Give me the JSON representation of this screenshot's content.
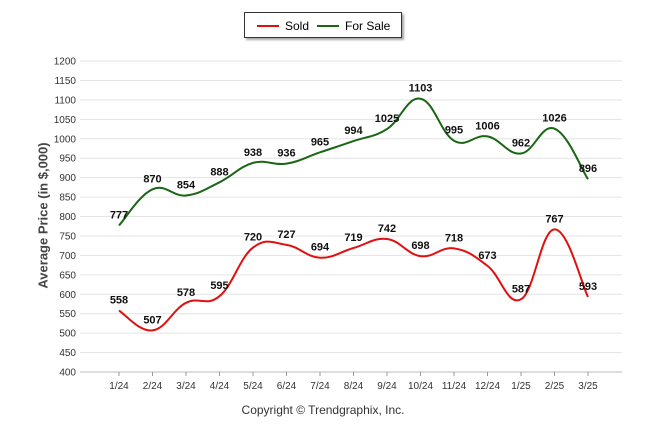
{
  "legend": {
    "items": [
      {
        "label": "Sold",
        "color": "#e01010"
      },
      {
        "label": "For Sale",
        "color": "#1a6614"
      }
    ]
  },
  "footer": {
    "copyright": "Copyright © Trendgraphix, Inc."
  },
  "chart_data": {
    "type": "line",
    "title": "",
    "xlabel": "",
    "ylabel": "Average Price (in $,000)",
    "ylim": [
      400,
      1200
    ],
    "ytick_step": 50,
    "grid": true,
    "legend_position": "top-center",
    "categories": [
      "1/24",
      "2/24",
      "3/24",
      "4/24",
      "5/24",
      "6/24",
      "7/24",
      "8/24",
      "9/24",
      "10/24",
      "11/24",
      "12/24",
      "1/25",
      "2/25",
      "3/25"
    ],
    "series": [
      {
        "name": "Sold",
        "color": "#e01010",
        "values": [
          558,
          507,
          578,
          595,
          720,
          727,
          694,
          719,
          742,
          698,
          718,
          673,
          587,
          767,
          593
        ]
      },
      {
        "name": "For Sale",
        "color": "#1a6614",
        "values": [
          777,
          870,
          854,
          888,
          938,
          936,
          965,
          994,
          1025,
          1103,
          995,
          1006,
          962,
          1026,
          896
        ]
      }
    ]
  }
}
